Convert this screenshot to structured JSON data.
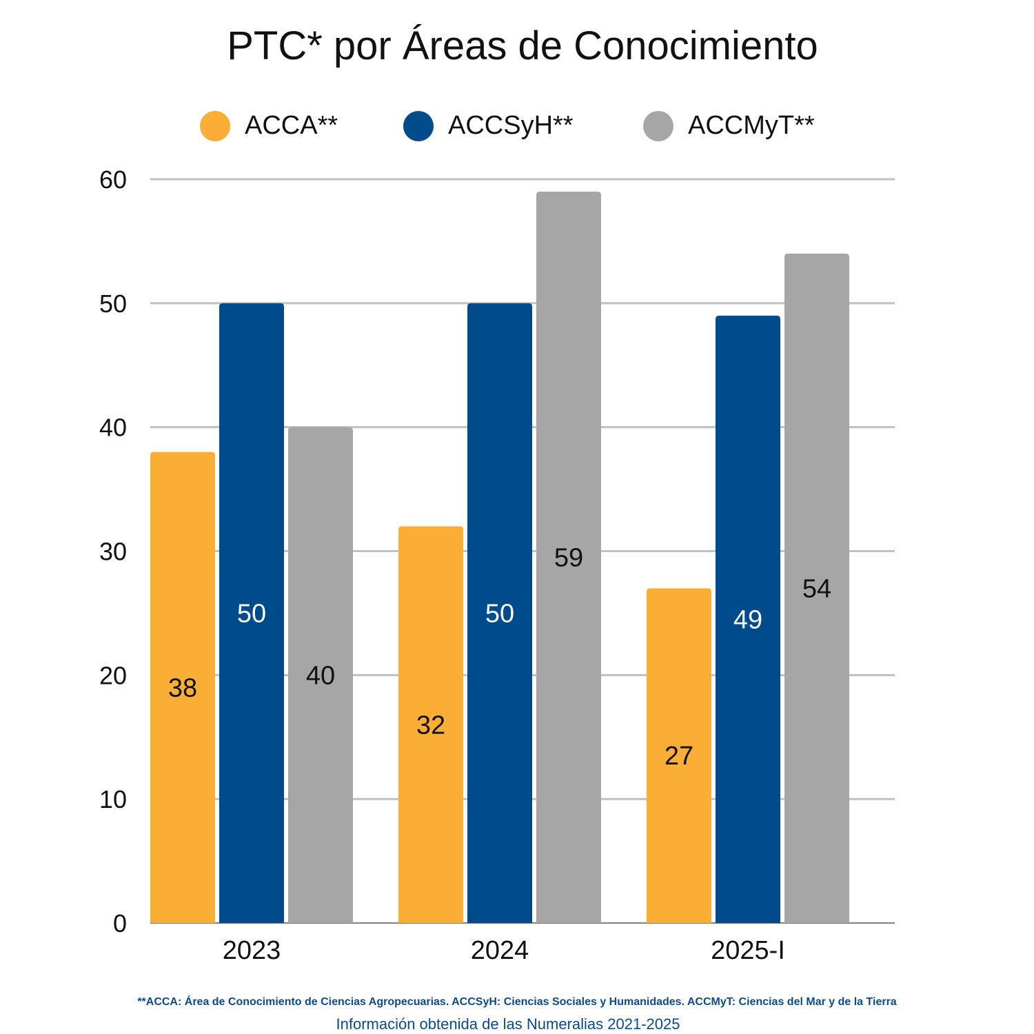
{
  "chart_data": {
    "type": "bar",
    "title": "PTC* por Áreas de Conocimiento",
    "categories": [
      "2023",
      "2024",
      "2025-I"
    ],
    "series": [
      {
        "name": "ACCA**",
        "values": [
          38,
          32,
          27
        ],
        "color": "#fbae35",
        "label_color": "#111111"
      },
      {
        "name": "ACCSyH**",
        "values": [
          50,
          50,
          49
        ],
        "color": "#004b8c",
        "label_color": "#ffffff"
      },
      {
        "name": "ACCMyT**",
        "values": [
          40,
          59,
          54
        ],
        "color": "#a6a6a6",
        "label_color": "#111111"
      }
    ],
    "ylim": [
      0,
      60
    ],
    "yticks": [
      0,
      10,
      20,
      30,
      40,
      50,
      60
    ],
    "grid": true,
    "legend_position": "top",
    "footnote": "**ACCA: Área de Conocimiento de Ciencias Agropecuarias. ACCSyH: Ciencias Sociales y Humanidades. ACCMyT: Ciencias del Mar y de la Tierra",
    "source": "Información obtenida de las Numeralias 2021-2025"
  }
}
